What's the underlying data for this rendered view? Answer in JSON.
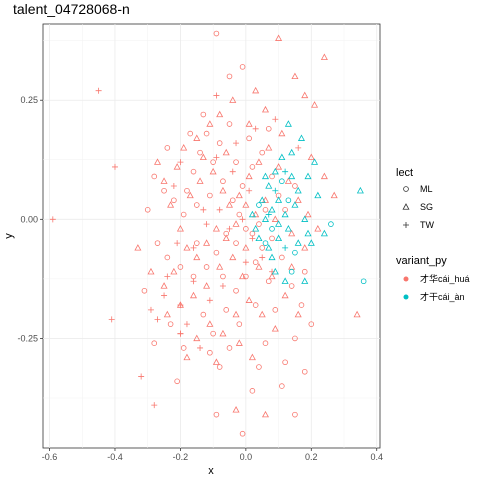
{
  "chart_data": {
    "type": "scatter",
    "title": "talent_04728068-n",
    "xlabel": "x",
    "ylabel": "y",
    "xlim": [
      -0.62,
      0.41
    ],
    "ylim": [
      -0.48,
      0.41
    ],
    "x_ticks": [
      -0.6,
      -0.4,
      -0.2,
      0.0,
      0.2,
      0.4
    ],
    "x_tick_labels": [
      "-0.6",
      "-0.4",
      "-0.2",
      "0.0",
      "0.2",
      "0.4"
    ],
    "y_ticks": [
      -0.25,
      0.0,
      0.25
    ],
    "y_tick_labels": [
      "-0.25",
      "0.00",
      "0.25"
    ],
    "grid": true,
    "legend_position": "right",
    "shape_legend": {
      "title": "lect",
      "entries": [
        {
          "label": "ML",
          "shape": "circle"
        },
        {
          "label": "SG",
          "shape": "triangle"
        },
        {
          "label": "TW",
          "shape": "plus"
        }
      ]
    },
    "color_legend": {
      "title": "variant_py",
      "entries": [
        {
          "label": "才华cái_huá",
          "color": "#F8766D"
        },
        {
          "label": "才干cái_àn",
          "color": "#00BFC4"
        }
      ]
    },
    "series": [
      {
        "lect": "ML",
        "variant": "才华cái_huá",
        "points": [
          [
            -0.09,
            0.39
          ],
          [
            -0.05,
            0.3
          ],
          [
            -0.01,
            0.32
          ],
          [
            -0.13,
            0.22
          ],
          [
            -0.12,
            0.18
          ],
          [
            -0.16,
            0.1
          ],
          [
            -0.18,
            0.06
          ],
          [
            -0.22,
            0.04
          ],
          [
            -0.25,
            0.06
          ],
          [
            -0.28,
            0.09
          ],
          [
            -0.3,
            0.02
          ],
          [
            -0.19,
            0.01
          ],
          [
            -0.15,
            0.03
          ],
          [
            -0.11,
            0.05
          ],
          [
            -0.07,
            0.08
          ],
          [
            -0.04,
            0.04
          ],
          [
            -0.02,
            0.01
          ],
          [
            0.0,
            -0.02
          ],
          [
            -0.03,
            -0.05
          ],
          [
            -0.06,
            -0.03
          ],
          [
            -0.09,
            -0.07
          ],
          [
            -0.12,
            -0.1
          ],
          [
            -0.16,
            -0.12
          ],
          [
            -0.2,
            -0.1
          ],
          [
            -0.24,
            -0.08
          ],
          [
            -0.27,
            -0.05
          ],
          [
            -0.13,
            -0.2
          ],
          [
            -0.1,
            -0.24
          ],
          [
            -0.06,
            -0.19
          ],
          [
            -0.03,
            -0.15
          ],
          [
            0.0,
            -0.12
          ],
          [
            0.03,
            -0.09
          ],
          [
            0.05,
            -0.06
          ],
          [
            0.02,
            -0.03
          ],
          [
            -0.01,
            0.07
          ],
          [
            0.02,
            0.11
          ],
          [
            0.05,
            0.14
          ],
          [
            0.08,
            0.09
          ],
          [
            0.1,
            0.05
          ],
          [
            0.06,
            0.02
          ],
          [
            0.04,
            -0.01
          ],
          [
            0.08,
            -0.04
          ],
          [
            0.11,
            -0.08
          ],
          [
            0.07,
            -0.13
          ],
          [
            0.03,
            -0.18
          ],
          [
            -0.02,
            -0.22
          ],
          [
            -0.05,
            -0.27
          ],
          [
            -0.08,
            -0.31
          ],
          [
            -0.11,
            -0.28
          ],
          [
            -0.19,
            -0.27
          ],
          [
            -0.23,
            -0.22
          ],
          [
            -0.31,
            -0.15
          ],
          [
            -0.28,
            -0.26
          ],
          [
            0.06,
            -0.26
          ],
          [
            0.12,
            -0.3
          ],
          [
            0.15,
            -0.25
          ],
          [
            0.17,
            -0.18
          ],
          [
            0.2,
            -0.22
          ],
          [
            0.18,
            -0.11
          ],
          [
            0.14,
            -0.14
          ],
          [
            0.12,
            0.02
          ],
          [
            0.15,
            0.07
          ],
          [
            -0.1,
            0.12
          ],
          [
            -0.14,
            0.14
          ],
          [
            -0.08,
            0.16
          ],
          [
            -0.05,
            0.2
          ],
          [
            -0.03,
            0.12
          ],
          [
            0.01,
            0.17
          ],
          [
            -0.09,
            -0.41
          ],
          [
            0.02,
            -0.36
          ],
          [
            0.11,
            -0.35
          ],
          [
            0.18,
            -0.32
          ],
          [
            -0.21,
            -0.34
          ],
          [
            -0.01,
            -0.45
          ],
          [
            0.15,
            -0.41
          ],
          [
            0.04,
            -0.31
          ],
          [
            -0.15,
            -0.05
          ],
          [
            -0.07,
            -0.12
          ],
          [
            0.09,
            -0.19
          ],
          [
            0.07,
            0.19
          ],
          [
            -0.17,
            0.18
          ],
          [
            -0.24,
            0.15
          ]
        ]
      },
      {
        "lect": "SG",
        "variant": "才华cái_huá",
        "points": [
          [
            0.1,
            0.38
          ],
          [
            0.24,
            0.34
          ],
          [
            0.15,
            0.3
          ],
          [
            0.18,
            0.26
          ],
          [
            0.21,
            0.24
          ],
          [
            0.03,
            0.27
          ],
          [
            0.06,
            0.23
          ],
          [
            -0.04,
            0.25
          ],
          [
            -0.08,
            0.22
          ],
          [
            -0.11,
            0.2
          ],
          [
            -0.15,
            0.17
          ],
          [
            -0.19,
            0.15
          ],
          [
            -0.21,
            0.11
          ],
          [
            -0.25,
            0.08
          ],
          [
            -0.23,
            0.03
          ],
          [
            -0.2,
            -0.02
          ],
          [
            -0.17,
            0.05
          ],
          [
            -0.14,
            0.08
          ],
          [
            -0.1,
            0.1
          ],
          [
            -0.07,
            0.06
          ],
          [
            -0.05,
            0.03
          ],
          [
            -0.02,
            0.05
          ],
          [
            0.01,
            0.09
          ],
          [
            0.04,
            0.12
          ],
          [
            0.07,
            0.15
          ],
          [
            0.1,
            0.11
          ],
          [
            0.13,
            0.08
          ],
          [
            0.16,
            0.04
          ],
          [
            0.19,
            0.01
          ],
          [
            0.22,
            -0.02
          ],
          [
            0.18,
            -0.06
          ],
          [
            0.14,
            -0.03
          ],
          [
            0.09,
            0.0
          ],
          [
            0.06,
            0.04
          ],
          [
            0.03,
            0.01
          ],
          [
            0.0,
            0.03
          ],
          [
            -0.03,
            -0.01
          ],
          [
            -0.06,
            -0.04
          ],
          [
            -0.09,
            -0.02
          ],
          [
            -0.12,
            -0.05
          ],
          [
            -0.15,
            -0.08
          ],
          [
            -0.18,
            -0.06
          ],
          [
            -0.22,
            -0.11
          ],
          [
            -0.25,
            -0.14
          ],
          [
            -0.2,
            -0.18
          ],
          [
            -0.16,
            -0.16
          ],
          [
            -0.12,
            -0.14
          ],
          [
            -0.08,
            -0.1
          ],
          [
            -0.04,
            -0.08
          ],
          [
            0.0,
            -0.06
          ],
          [
            0.04,
            -0.1
          ],
          [
            0.08,
            -0.12
          ],
          [
            0.12,
            -0.16
          ],
          [
            0.16,
            -0.2
          ],
          [
            0.09,
            -0.23
          ],
          [
            0.05,
            -0.2
          ],
          [
            0.01,
            -0.17
          ],
          [
            -0.03,
            -0.2
          ],
          [
            -0.07,
            -0.24
          ],
          [
            -0.11,
            -0.22
          ],
          [
            -0.15,
            -0.25
          ],
          [
            -0.18,
            -0.29
          ],
          [
            -0.09,
            -0.3
          ],
          [
            -0.02,
            -0.26
          ],
          [
            0.02,
            -0.29
          ],
          [
            -0.03,
            -0.4
          ],
          [
            0.06,
            -0.41
          ],
          [
            0.34,
            -0.2
          ],
          [
            0.27,
            0.05
          ],
          [
            0.24,
            0.09
          ],
          [
            -0.33,
            -0.06
          ],
          [
            -0.29,
            -0.11
          ],
          [
            -0.27,
            0.12
          ],
          [
            -0.13,
            0.13
          ],
          [
            0.11,
            0.18
          ],
          [
            0.2,
            0.13
          ],
          [
            -0.06,
            0.14
          ],
          [
            -0.01,
            -0.12
          ],
          [
            0.14,
            -0.1
          ],
          [
            -0.24,
            -0.2
          ],
          [
            0.01,
            0.2
          ]
        ]
      },
      {
        "lect": "TW",
        "variant": "才华cái_huá",
        "points": [
          [
            -0.59,
            0.0
          ],
          [
            -0.45,
            0.27
          ],
          [
            -0.4,
            0.11
          ],
          [
            -0.41,
            -0.21
          ],
          [
            -0.32,
            -0.33
          ],
          [
            -0.28,
            -0.39
          ],
          [
            -0.29,
            -0.19
          ],
          [
            -0.27,
            -0.21
          ],
          [
            -0.25,
            -0.16
          ],
          [
            -0.2,
            -0.18
          ],
          [
            -0.18,
            -0.22
          ],
          [
            -0.2,
            -0.24
          ],
          [
            -0.11,
            -0.17
          ],
          [
            -0.07,
            -0.14
          ],
          [
            -0.21,
            -0.05
          ],
          [
            -0.24,
            -0.12
          ],
          [
            -0.16,
            -0.06
          ],
          [
            -0.12,
            -0.01
          ],
          [
            -0.08,
            0.02
          ],
          [
            -0.05,
            -0.02
          ],
          [
            -0.01,
            0.0
          ],
          [
            0.02,
            -0.04
          ],
          [
            0.05,
            -0.08
          ],
          [
            0.08,
            -0.11
          ],
          [
            0.01,
            0.06
          ],
          [
            -0.04,
            0.1
          ],
          [
            -0.09,
            0.13
          ],
          [
            -0.03,
            0.16
          ],
          [
            0.03,
            0.19
          ],
          [
            0.09,
            0.21
          ],
          [
            0.16,
            0.15
          ],
          [
            -0.09,
            0.26
          ],
          [
            -0.2,
            0.12
          ],
          [
            -0.22,
            0.07
          ],
          [
            -0.16,
            -0.13
          ],
          [
            -0.14,
            -0.27
          ],
          [
            -0.2,
            -0.24
          ],
          [
            -0.13,
            0.02
          ],
          [
            0.0,
            -0.09
          ]
        ]
      },
      {
        "lect": "ML",
        "variant": "才干cái_àn",
        "points": [
          [
            0.36,
            -0.13
          ],
          [
            0.26,
            -0.01
          ],
          [
            0.14,
            -0.11
          ],
          [
            0.08,
            -0.02
          ],
          [
            0.06,
            -0.05
          ],
          [
            0.13,
            0.04
          ],
          [
            0.11,
            0.08
          ],
          [
            0.15,
            -0.07
          ],
          [
            0.04,
            0.03
          ]
        ]
      },
      {
        "lect": "SG",
        "variant": "才干cái_àn",
        "points": [
          [
            0.13,
            0.2
          ],
          [
            0.17,
            0.17
          ],
          [
            0.35,
            0.06
          ],
          [
            0.22,
            0.05
          ],
          [
            0.24,
            -0.03
          ],
          [
            0.2,
            -0.05
          ],
          [
            0.18,
            0.0
          ],
          [
            0.15,
            0.03
          ],
          [
            0.12,
            0.01
          ],
          [
            0.1,
            -0.01
          ],
          [
            0.08,
            0.02
          ],
          [
            0.06,
            0.0
          ],
          [
            0.05,
            0.04
          ],
          [
            0.07,
            0.07
          ],
          [
            0.09,
            0.1
          ],
          [
            0.11,
            0.13
          ],
          [
            0.14,
            0.09
          ],
          [
            0.16,
            0.06
          ],
          [
            0.19,
            0.09
          ],
          [
            0.21,
            0.12
          ],
          [
            0.04,
            -0.04
          ],
          [
            0.07,
            -0.06
          ],
          [
            0.1,
            -0.04
          ],
          [
            0.13,
            -0.02
          ],
          [
            0.16,
            -0.05
          ],
          [
            0.19,
            -0.03
          ],
          [
            0.09,
            -0.11
          ],
          [
            0.12,
            -0.13
          ],
          [
            0.18,
            -0.13
          ],
          [
            0.02,
            0.01
          ],
          [
            0.03,
            -0.02
          ],
          [
            0.06,
            0.09
          ],
          [
            0.1,
            0.04
          ],
          [
            0.08,
            -0.08
          ],
          [
            0.14,
            0.14
          ]
        ]
      },
      {
        "lect": "TW",
        "variant": "才干cái_àn",
        "points": [
          [
            0.12,
            0.1
          ],
          [
            0.09,
            0.06
          ],
          [
            0.07,
            0.01
          ],
          [
            0.12,
            -0.06
          ]
        ]
      }
    ]
  }
}
